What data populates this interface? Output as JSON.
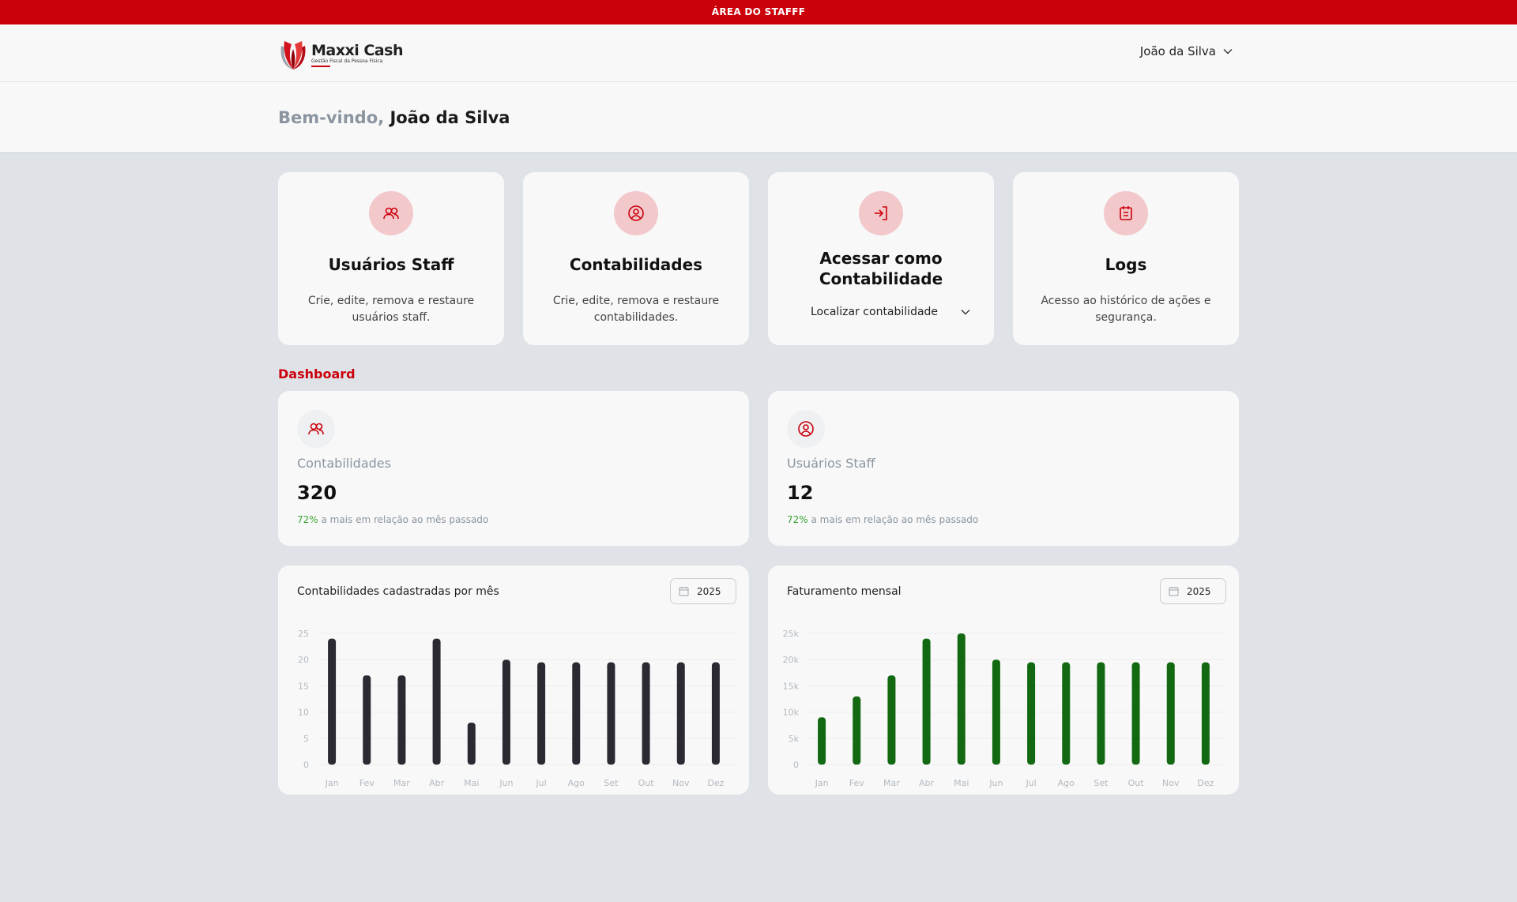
{
  "topbar": {
    "label": "ÁREA DO STAFFF"
  },
  "header": {
    "logo_name": "Maxxi Cash",
    "logo_subtitle": "Gestão Fiscal da Pessoa Física",
    "user_name": "João da Silva"
  },
  "welcome": {
    "prefix": "Bem-vindo,",
    "name": "João da Silva"
  },
  "cards": [
    {
      "title": "Usuários Staff",
      "description": "Crie, edite, remova e restaure usuários staff.",
      "icon": "users-icon"
    },
    {
      "title": "Contabilidades",
      "description": "Crie, edite, remova e restaure contabilidades.",
      "icon": "user-circle-icon"
    },
    {
      "title": "Acessar como Contabilidade",
      "select_placeholder": "Localizar contabilidade",
      "icon": "login-icon"
    },
    {
      "title": "Logs",
      "description": "Acesso ao histórico de ações e segurança.",
      "icon": "calendar-icon"
    }
  ],
  "dashboard": {
    "section_label": "Dashboard",
    "stats": [
      {
        "label": "Contabilidades",
        "value": "320",
        "percent": "72%",
        "note": " a mais em relação ao mês passado",
        "icon": "users-icon"
      },
      {
        "label": "Usuários Staff",
        "value": "12",
        "percent": "72%",
        "note": " a mais em relação ao mês passado",
        "icon": "user-circle-icon"
      }
    ]
  },
  "chart_data": [
    {
      "type": "bar",
      "title": "Contabilidades cadastradas por mês",
      "year": "2025",
      "categories": [
        "Jan",
        "Fev",
        "Mar",
        "Abr",
        "Mai",
        "Jun",
        "Jul",
        "Ago",
        "Set",
        "Out",
        "Nov",
        "Dez"
      ],
      "values": [
        24,
        17,
        17,
        24,
        8,
        20,
        19.5,
        19.5,
        19.5,
        19.5,
        19.5,
        19.5
      ],
      "ylim": [
        0,
        25
      ],
      "yticks": [
        "0",
        "5",
        "10",
        "15",
        "20",
        "25"
      ],
      "color": "#2b2a33",
      "grid": true
    },
    {
      "type": "bar",
      "title": "Faturamento mensal",
      "year": "2025",
      "categories": [
        "Jan",
        "Fev",
        "Mar",
        "Abr",
        "Mai",
        "Jun",
        "Jul",
        "Ago",
        "Set",
        "Out",
        "Nov",
        "Dez"
      ],
      "values": [
        9000,
        13000,
        17000,
        24000,
        25000,
        20000,
        19500,
        19500,
        19500,
        19500,
        19500,
        19500
      ],
      "ylim": [
        0,
        25000
      ],
      "yticks": [
        "0",
        "5k",
        "10k",
        "15k",
        "20k",
        "25k"
      ],
      "color": "#126912",
      "grid": true
    }
  ],
  "colors": {
    "brand": "#cc000b",
    "positive": "#3aa535"
  }
}
